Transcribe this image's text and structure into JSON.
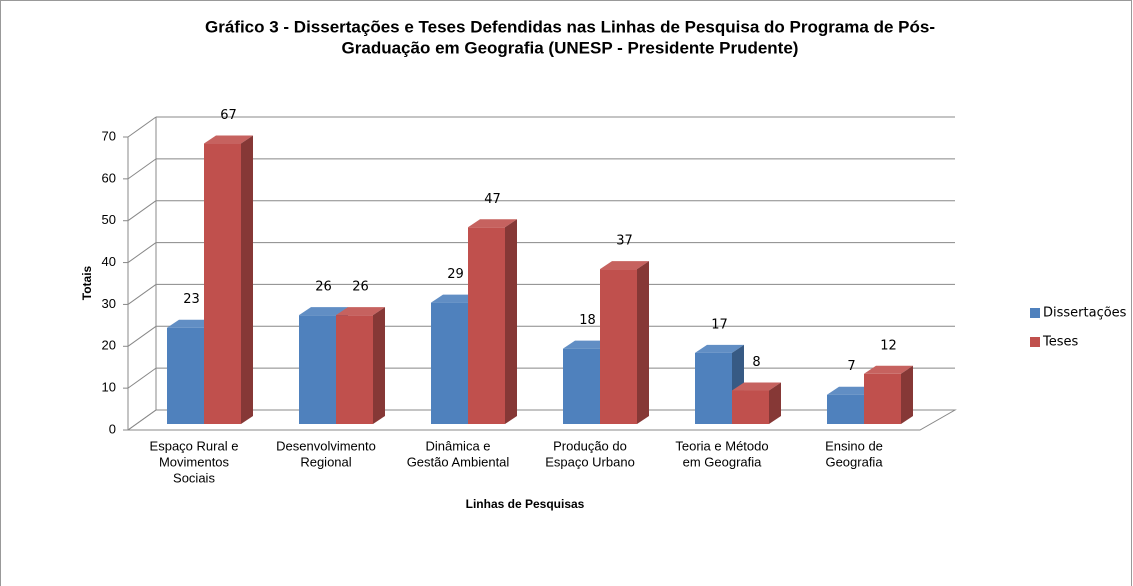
{
  "chart_data": {
    "type": "bar3d",
    "title": [
      "Gráfico 3 - Dissertações e Teses Defendidas nas Linhas de Pesquisa do Programa de Pós-",
      "Graduação em Geografia (UNESP - Presidente Prudente)"
    ],
    "x_label": "Linhas de Pesquisas",
    "y_label": "Totais",
    "categories": [
      [
        "Espaço Rural e",
        "Movimentos",
        "Sociais"
      ],
      [
        "Desenvolvimento",
        "Regional"
      ],
      [
        "Dinâmica e",
        "Gestão Ambiental"
      ],
      [
        "Produção do",
        "Espaço Urbano"
      ],
      [
        "Teoria e Método",
        "em Geografia"
      ],
      [
        "Ensino de",
        "Geografia"
      ]
    ],
    "series": [
      {
        "name": "Dissertações",
        "color": "#4f81bd",
        "values": [
          23,
          26,
          29,
          18,
          17,
          7
        ]
      },
      {
        "name": "Teses",
        "color": "#c0504d",
        "values": [
          67,
          26,
          47,
          37,
          8,
          12
        ]
      }
    ],
    "ylim": [
      0,
      70
    ],
    "yticks": [
      0,
      10,
      20,
      30,
      40,
      50,
      60,
      70
    ],
    "grid": true,
    "legend": "right"
  }
}
